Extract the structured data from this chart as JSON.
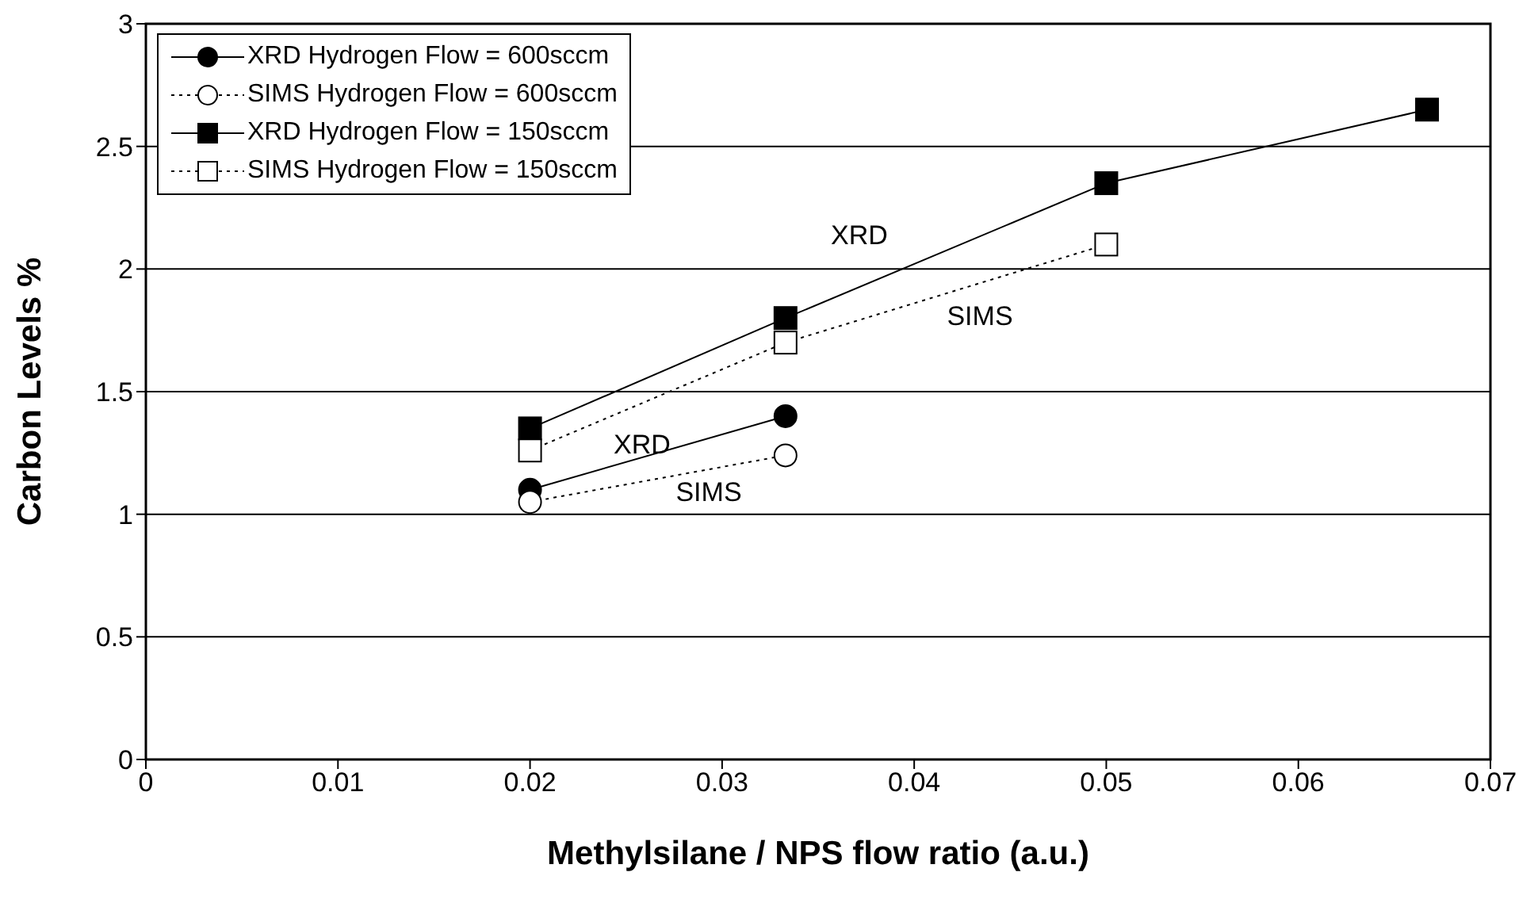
{
  "chart_data": {
    "type": "line",
    "xlabel": "Methylsilane / NPS flow ratio (a.u.)",
    "ylabel": "Carbon Levels %",
    "series": [
      {
        "name": "XRD Hydrogen Flow = 600sccm",
        "color": "#000000",
        "marker": "circle",
        "line_style": "solid",
        "x": [
          0.02,
          0.0333
        ],
        "values": [
          1.1,
          1.4
        ]
      },
      {
        "name": "SIMS Hydrogen Flow = 600sccm",
        "color": "#000000",
        "marker": "circle",
        "line_style": "dotted",
        "x": [
          0.02,
          0.0333
        ],
        "values": [
          1.05,
          1.24
        ]
      },
      {
        "name": "XRD Hydrogen Flow = 150sccm",
        "color": "#000000",
        "marker": "square",
        "line_style": "solid",
        "x": [
          0.02,
          0.0333,
          0.05,
          0.0667
        ],
        "values": [
          1.35,
          1.8,
          2.35,
          2.65
        ]
      },
      {
        "name": "SIMS Hydrogen Flow = 150sccm",
        "color": "#000000",
        "marker": "square",
        "line_style": "dotted",
        "x": [
          0.02,
          0.0333,
          0.05
        ],
        "values": [
          1.26,
          1.7,
          2.1
        ]
      }
    ],
    "annotations": [
      "XRD",
      "SIMS",
      "XRD",
      "SIMS"
    ],
    "xlim": [
      0,
      0.07
    ],
    "xticks": [
      0,
      0.01,
      0.02,
      0.03,
      0.04,
      0.05,
      0.06,
      0.07
    ],
    "ylim": [
      0,
      3
    ],
    "yticks": [
      0,
      0.5,
      1,
      1.5,
      2,
      2.5,
      3
    ],
    "grid": "y",
    "legend": "top left"
  }
}
